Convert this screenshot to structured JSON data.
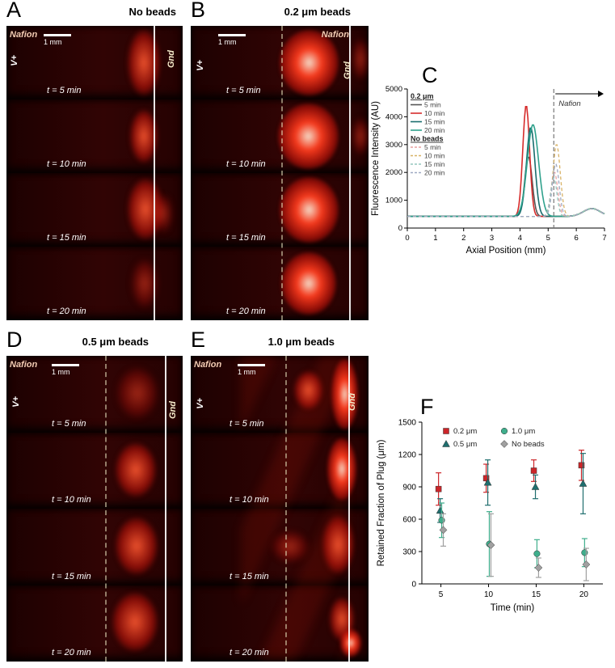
{
  "figure": {
    "panels": {
      "A": {
        "letter": "A",
        "title": "No beads",
        "nafion_label": "Nafion",
        "scale_label": "1 mm",
        "electrode_left": "V+",
        "electrode_right": "Gnd",
        "time_labels": [
          "t = 5 min",
          "t = 10 min",
          "t = 15 min",
          "t = 20 min"
        ]
      },
      "B": {
        "letter": "B",
        "title": "0.2 μm beads",
        "nafion_label": "Nafion",
        "scale_label": "1 mm",
        "electrode_left": "V+",
        "electrode_right": "Gnd",
        "time_labels": [
          "t = 5 min",
          "t = 10 min",
          "t = 15 min",
          "t = 20 min"
        ]
      },
      "C": {
        "letter": "C"
      },
      "D": {
        "letter": "D",
        "title": "0.5 μm beads",
        "nafion_label": "Nafion",
        "scale_label": "1 mm",
        "electrode_left": "V+",
        "electrode_right": "Gnd",
        "time_labels": [
          "t = 5 min",
          "t = 10 min",
          "t = 15 min",
          "t = 20 min"
        ]
      },
      "E": {
        "letter": "E",
        "title": "1.0 μm beads",
        "nafion_label": "Nafion",
        "scale_label": "1 mm",
        "electrode_left": "V+",
        "electrode_right": "Gnd",
        "time_labels": [
          "t = 5 min",
          "t = 10 min",
          "t = 15 min",
          "t = 20 min"
        ]
      },
      "F": {
        "letter": "F"
      }
    }
  },
  "chart_data": [
    {
      "type": "line",
      "panel": "C",
      "title": "",
      "xlabel": "Axial Position (mm)",
      "ylabel": "Fluorescence Intensity (AU)",
      "xlim": [
        0,
        7
      ],
      "ylim": [
        0,
        5000
      ],
      "xticks": [
        0,
        1,
        2,
        3,
        4,
        5,
        6,
        7
      ],
      "yticks": [
        0,
        1000,
        2000,
        3000,
        4000,
        5000
      ],
      "baseline": 420,
      "tail_bump": {
        "x": 6.55,
        "y": 280,
        "sigma": 0.3
      },
      "nafion_line_x": 5.2,
      "nafion_annotation": "Nafion",
      "legend_groups": [
        {
          "label": "0.2 μm"
        },
        {
          "label": "No beads"
        }
      ],
      "series": [
        {
          "group": "0.2 μm",
          "name": "5 min",
          "color": "#555555",
          "dash": false,
          "peak_x": 4.3,
          "peak_y": 2150,
          "sigma": 0.13
        },
        {
          "group": "0.2 μm",
          "name": "10 min",
          "color": "#d62b2b",
          "dash": false,
          "peak_x": 4.22,
          "peak_y": 4000,
          "sigma": 0.12
        },
        {
          "group": "0.2 μm",
          "name": "15 min",
          "color": "#196d6d",
          "dash": false,
          "peak_x": 4.38,
          "peak_y": 3200,
          "sigma": 0.15
        },
        {
          "group": "0.2 μm",
          "name": "20 min",
          "color": "#2fa18c",
          "dash": false,
          "peak_x": 4.46,
          "peak_y": 3300,
          "sigma": 0.2
        },
        {
          "group": "No beads",
          "name": "5 min",
          "color": "#e89f9f",
          "dash": true,
          "peak_x": 5.22,
          "peak_y": 1600,
          "sigma": 0.12
        },
        {
          "group": "No beads",
          "name": "10 min",
          "color": "#d8b266",
          "dash": true,
          "peak_x": 5.3,
          "peak_y": 2600,
          "sigma": 0.13
        },
        {
          "group": "No beads",
          "name": "15 min",
          "color": "#93c7bd",
          "dash": true,
          "peak_x": 5.2,
          "peak_y": 1400,
          "sigma": 0.11
        },
        {
          "group": "No beads",
          "name": "20 min",
          "color": "#9fa9c2",
          "dash": true,
          "peak_x": 5.27,
          "peak_y": 1900,
          "sigma": 0.12
        }
      ]
    },
    {
      "type": "scatter",
      "panel": "F",
      "xlabel": "Time (min)",
      "ylabel": "Retained Fraction of Plug (μm)",
      "xlim": [
        3,
        22
      ],
      "ylim": [
        0,
        1500
      ],
      "xticks": [
        5,
        10,
        15,
        20
      ],
      "yticks": [
        0,
        300,
        600,
        900,
        1200,
        1500
      ],
      "x": [
        5,
        10,
        15,
        20
      ],
      "series": [
        {
          "name": "0.2 μm",
          "marker": "square",
          "color": "#cc2529",
          "values": [
            880,
            980,
            1050,
            1100
          ],
          "errors": [
            150,
            130,
            100,
            140
          ]
        },
        {
          "name": "0.5 μm",
          "marker": "triangle",
          "color": "#1f6e6e",
          "values": [
            680,
            940,
            900,
            930
          ],
          "errors": [
            110,
            210,
            110,
            280
          ]
        },
        {
          "name": "1.0 μm",
          "marker": "circle",
          "color": "#3fae8c",
          "values": [
            590,
            370,
            280,
            290
          ],
          "errors": [
            160,
            300,
            130,
            130
          ]
        },
        {
          "name": "No beads",
          "marker": "diamond",
          "color": "#a0a0a0",
          "values": [
            500,
            360,
            150,
            180
          ],
          "errors": [
            150,
            290,
            90,
            150
          ]
        }
      ]
    }
  ]
}
